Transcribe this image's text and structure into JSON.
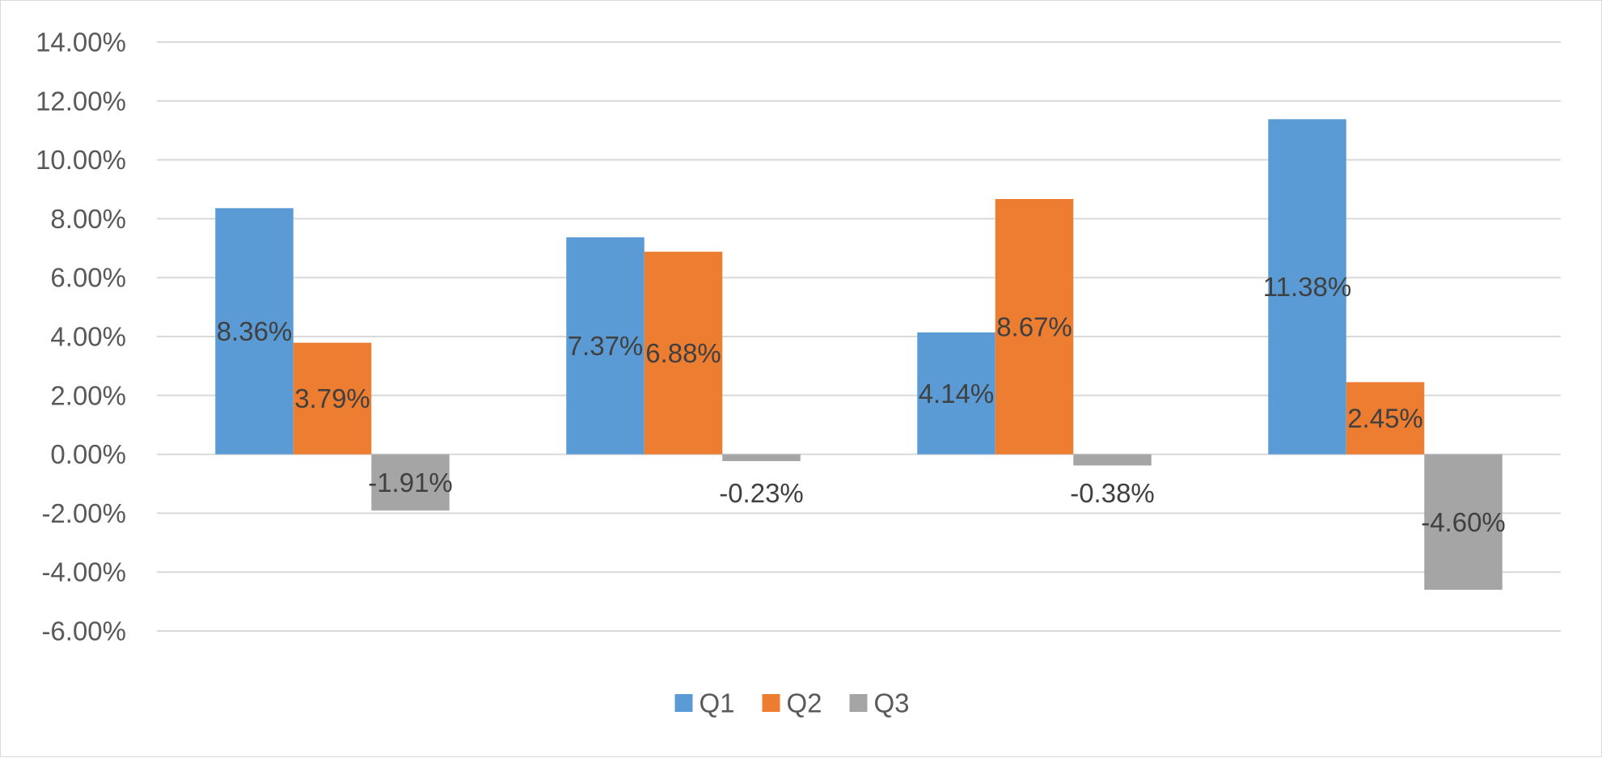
{
  "chart_data": {
    "type": "bar",
    "title": "",
    "xlabel": "",
    "ylabel": "",
    "categories": [
      "",
      "",
      "",
      ""
    ],
    "ylim": [
      -0.06,
      0.14
    ],
    "yticks": [
      0.14,
      0.12,
      0.1,
      0.08,
      0.06,
      0.04,
      0.02,
      0.0,
      -0.02,
      -0.04,
      -0.06
    ],
    "ytick_labels": [
      "14.00%",
      "12.00%",
      "10.00%",
      "8.00%",
      "6.00%",
      "4.00%",
      "2.00%",
      "0.00%",
      "-2.00%",
      "-4.00%",
      "-6.00%"
    ],
    "grid": true,
    "legend_position": "bottom",
    "series": [
      {
        "name": "Q1",
        "color": "#5b9bd5",
        "values": [
          0.0836,
          0.0737,
          0.0414,
          0.1138
        ],
        "labels": [
          "8.36%",
          "7.37%",
          "4.14%",
          "11.38%"
        ]
      },
      {
        "name": "Q2",
        "color": "#ed7d31",
        "values": [
          0.0379,
          0.0688,
          0.0867,
          0.0245
        ],
        "labels": [
          "3.79%",
          "6.88%",
          "8.67%",
          "2.45%"
        ]
      },
      {
        "name": "Q3",
        "color": "#a5a5a5",
        "values": [
          -0.0191,
          -0.0023,
          -0.0038,
          -0.046
        ],
        "labels": [
          "-1.91%",
          "-0.23%",
          "-0.38%",
          "-4.60%"
        ]
      }
    ]
  }
}
